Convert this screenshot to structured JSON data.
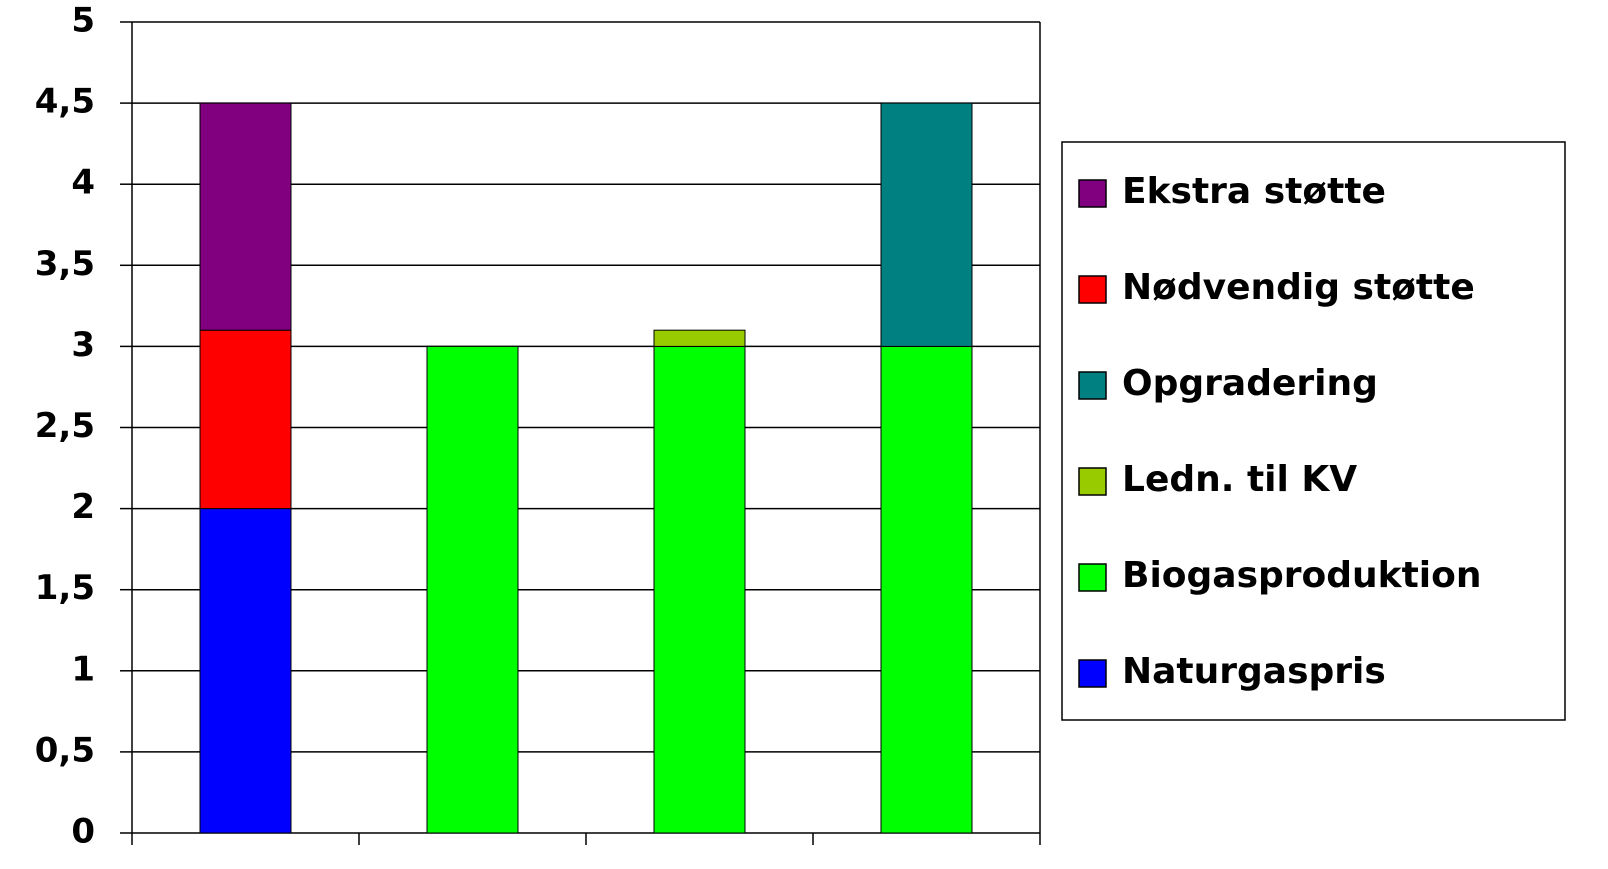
{
  "chart_data": {
    "type": "stacked-bar",
    "categories": [
      null,
      null,
      null,
      null
    ],
    "series": [
      {
        "name": "Naturgaspris",
        "color": "#0000ff",
        "values": [
          2,
          null,
          null,
          null
        ]
      },
      {
        "name": "Biogasproduktion",
        "color": "#00ff00",
        "values": [
          null,
          3,
          3,
          3
        ]
      },
      {
        "name": "Ledn. til KV",
        "color": "#99cc00",
        "values": [
          null,
          null,
          0.1,
          null
        ]
      },
      {
        "name": "Opgradering",
        "color": "#008080",
        "values": [
          null,
          null,
          null,
          1.5
        ]
      },
      {
        "name": "Nødvendig støtte",
        "color": "#ff0000",
        "values": [
          1.1,
          null,
          null,
          null
        ]
      },
      {
        "name": "Ekstra støtte",
        "color": "#800080",
        "values": [
          1.4,
          null,
          null,
          null
        ]
      }
    ],
    "ylim": [
      0,
      5
    ],
    "yticks": [
      0,
      {
        "value": 0.5,
        "label": "0,5"
      },
      1,
      {
        "value": 1.5,
        "label": "1,5"
      },
      2,
      {
        "value": 2.5,
        "label": "2,5"
      },
      3,
      {
        "value": 3.5,
        "label": "3,5"
      },
      4,
      {
        "value": 4.5,
        "label": "4,5"
      },
      5
    ],
    "grid": true,
    "legend": "right"
  }
}
